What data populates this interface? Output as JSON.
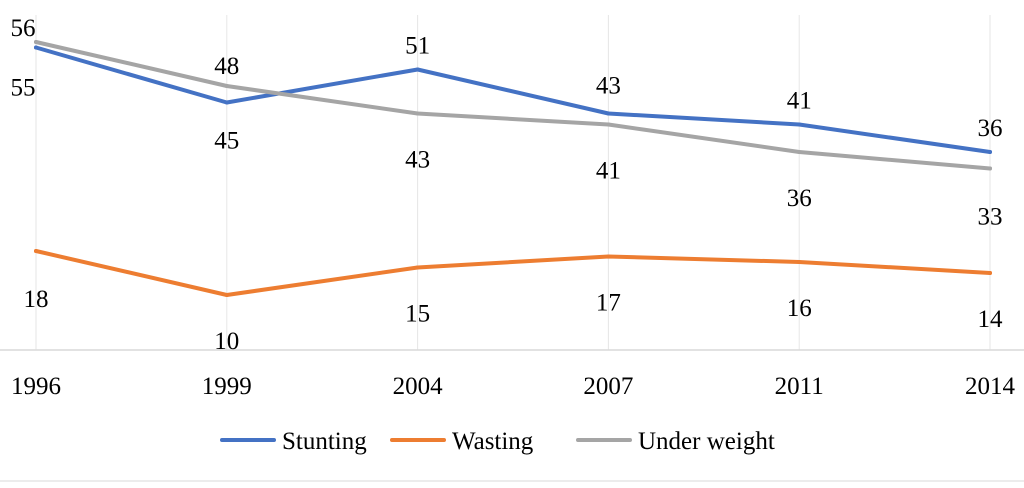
{
  "chart_data": {
    "type": "line",
    "title": "",
    "xlabel": "",
    "ylabel": "",
    "categories": [
      "1996",
      "1999",
      "2004",
      "2007",
      "2011",
      "2014"
    ],
    "series": [
      {
        "name": "Stunting",
        "color": "#4472C4",
        "values": [
          55,
          45,
          51,
          43,
          41,
          36
        ]
      },
      {
        "name": "Wasting",
        "color": "#ED7D31",
        "values": [
          18,
          10,
          15,
          17,
          16,
          14
        ]
      },
      {
        "name": "Under weight",
        "color": "#A5A5A5",
        "values": [
          56,
          48,
          43,
          41,
          36,
          33
        ]
      }
    ],
    "ylim": [
      0,
      60
    ],
    "grid": "vertical",
    "legend": "bottom"
  }
}
